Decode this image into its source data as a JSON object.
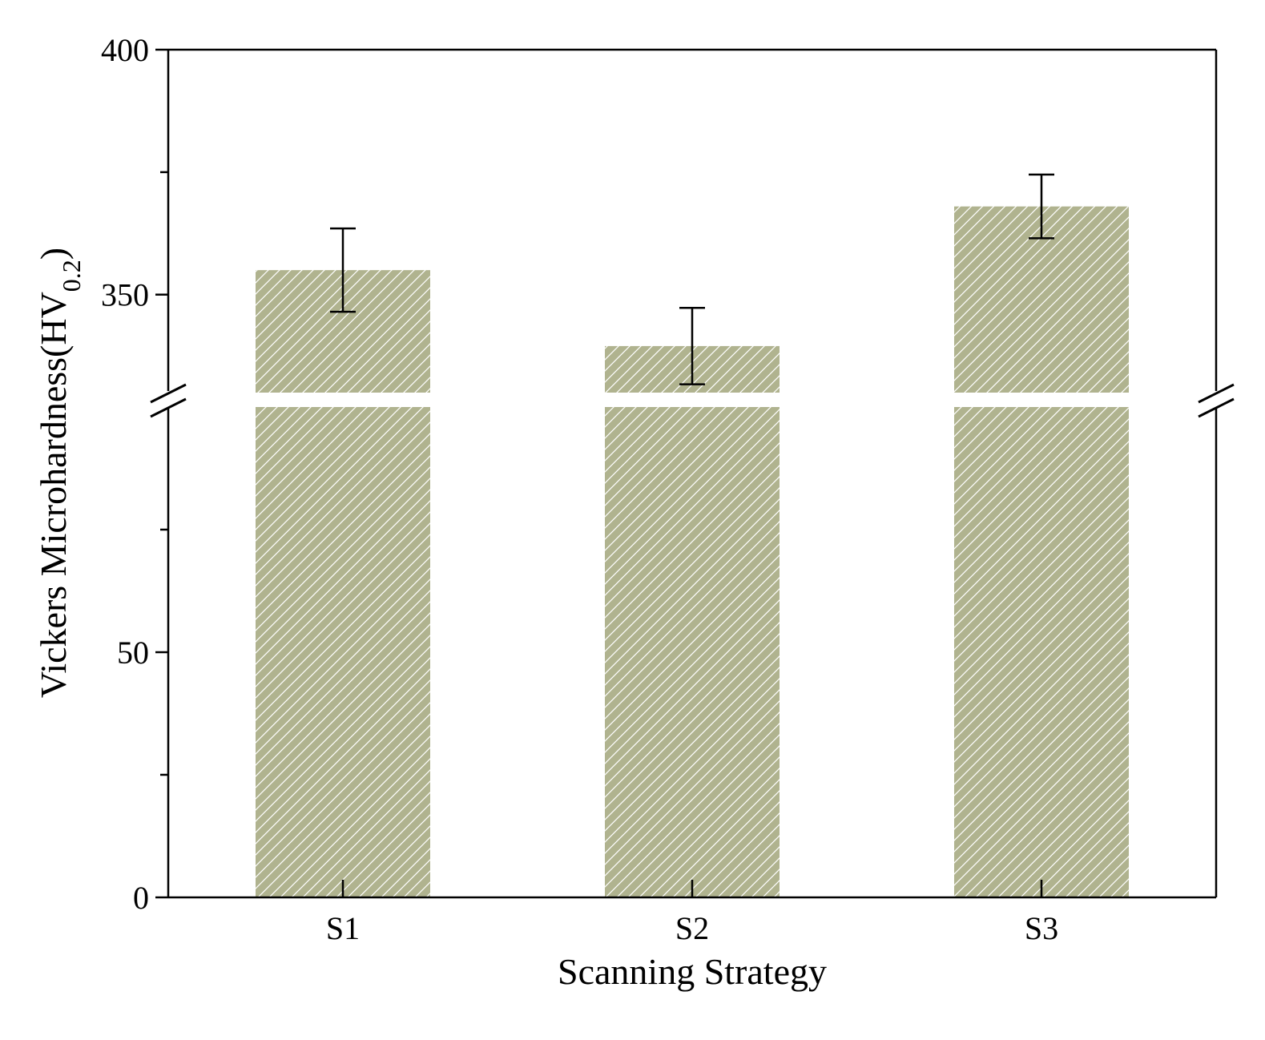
{
  "colors": {
    "bar_fill": "#b0b38f",
    "hatch": "#ffffff",
    "axis": "#000000",
    "background": "#ffffff"
  },
  "chart_data": {
    "type": "bar",
    "xlabel": "Scanning Strategy",
    "ylabel": {
      "main": "Vickers Microhardness(HV",
      "sub": "0.2",
      "close": ")"
    },
    "categories": [
      "S1",
      "S2",
      "S3"
    ],
    "values": [
      355,
      339.5,
      368
    ],
    "errors": [
      8.5,
      7.8,
      6.5
    ],
    "axis_break": {
      "lower_range": [
        0,
        100
      ],
      "upper_range": [
        330,
        400
      ]
    },
    "yticks": [
      {
        "value": 0,
        "label": "0"
      },
      {
        "value": 25,
        "label": ""
      },
      {
        "value": 50,
        "label": "50"
      },
      {
        "value": 75,
        "label": ""
      },
      {
        "value": 350,
        "label": "350"
      },
      {
        "value": 375,
        "label": ""
      },
      {
        "value": 400,
        "label": "400"
      }
    ],
    "bar_pattern": "diagonal-hatch",
    "grid": false,
    "legend": "none"
  }
}
